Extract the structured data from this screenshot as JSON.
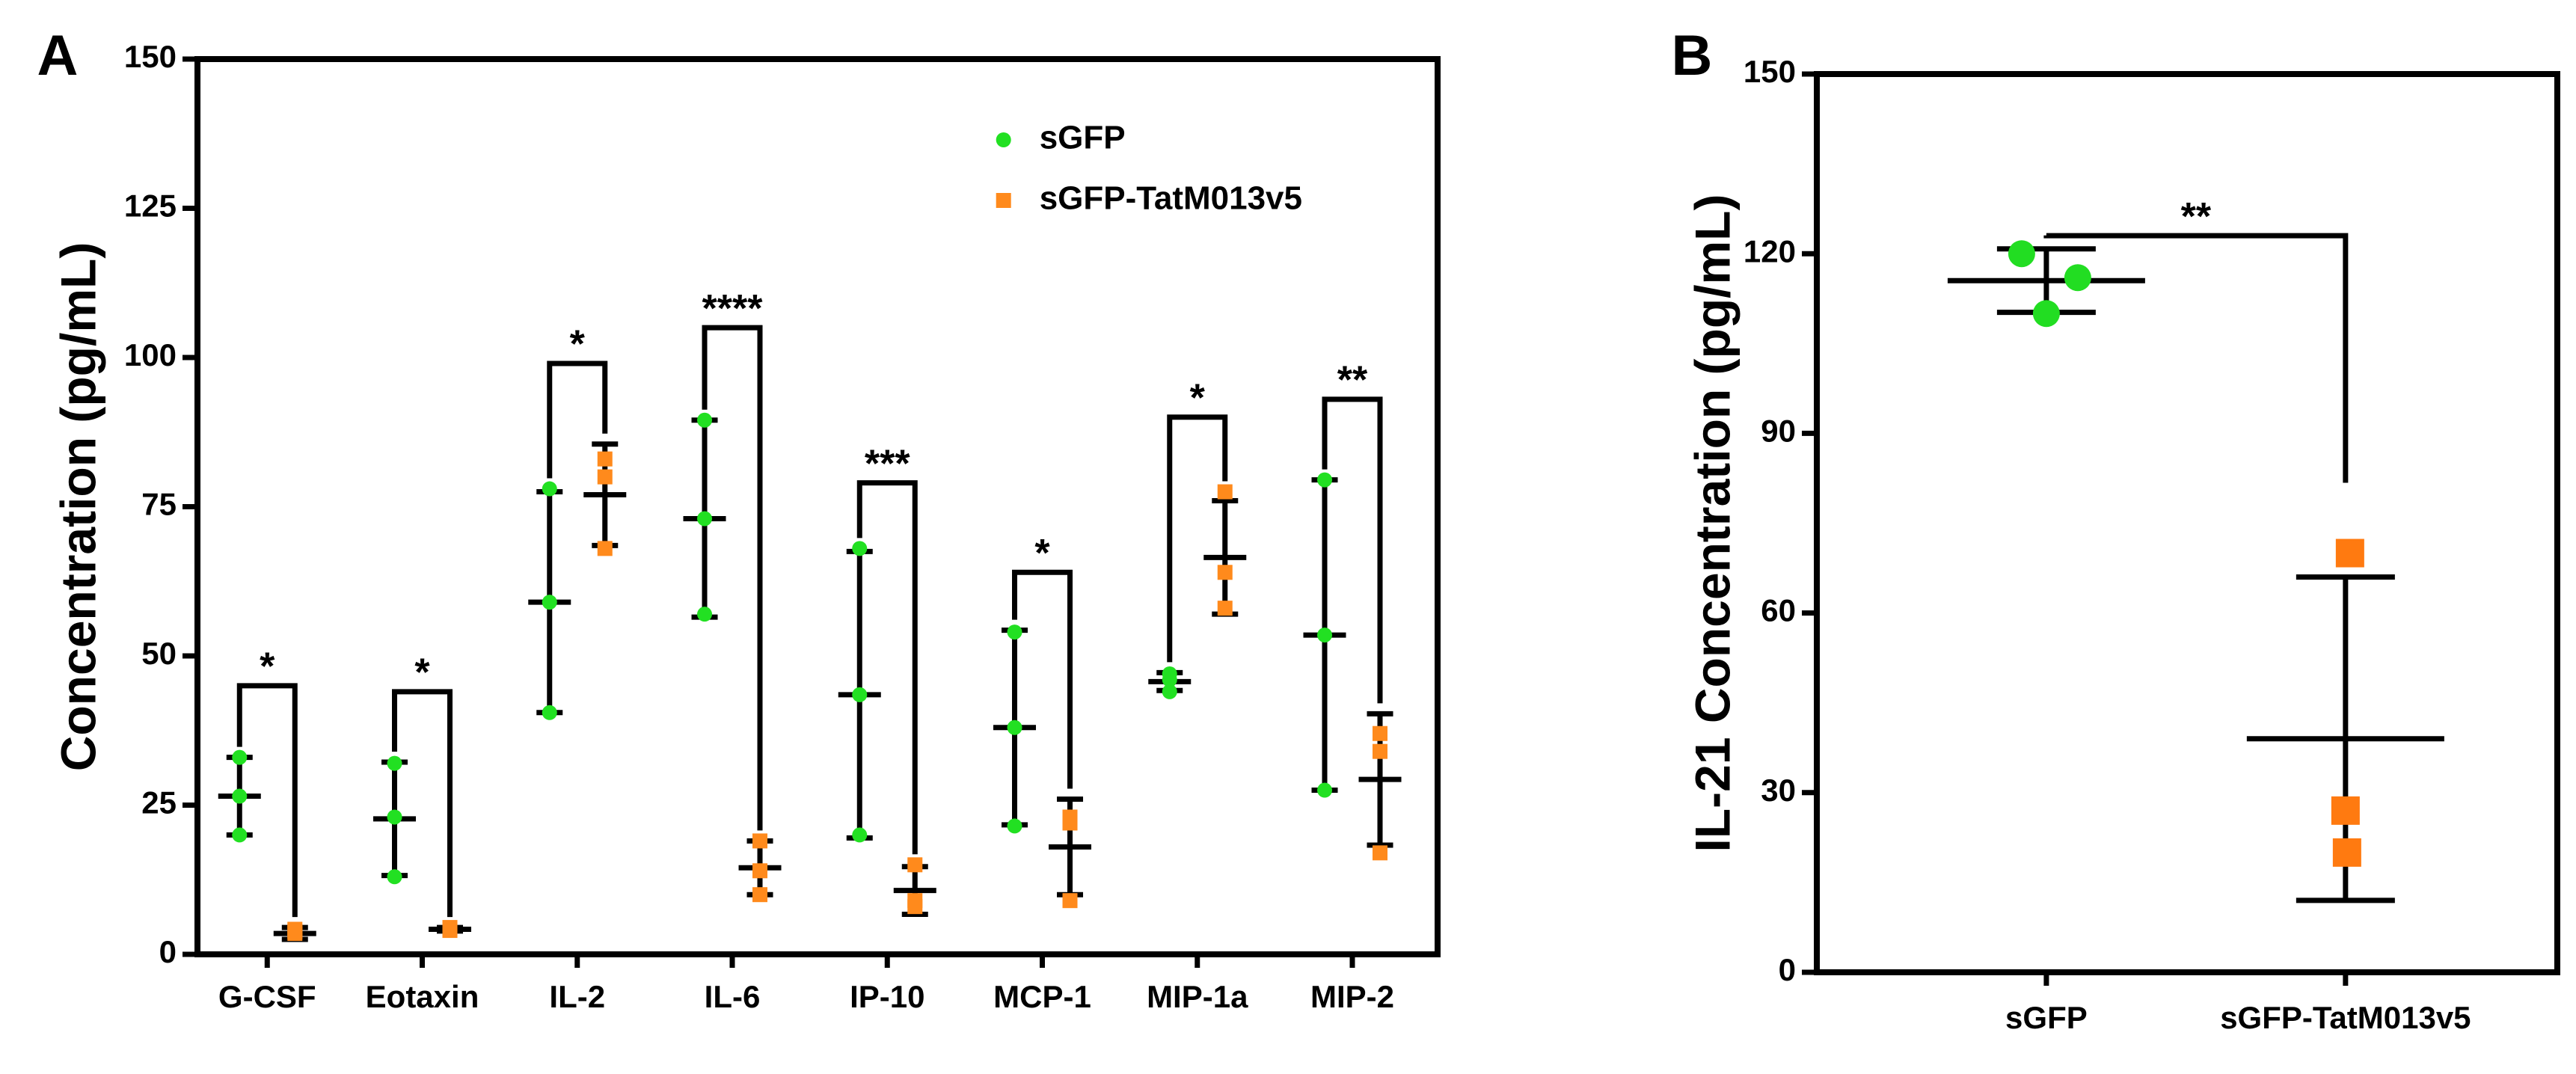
{
  "chart_data": [
    {
      "type": "dot",
      "panel": "A",
      "y_label": "Concentration (pg/mL)",
      "categories": [
        "G-CSF",
        "Eotaxin",
        "IL-2",
        "IL-6",
        "IP-10",
        "MCP-1",
        "MIP-1a",
        "MIP-2"
      ],
      "ylim": [
        0,
        150
      ],
      "yticks": [
        0,
        25,
        50,
        75,
        100,
        125,
        150
      ],
      "legend": "top-right",
      "series": [
        {
          "name": "sGFP",
          "color": "#22e022",
          "marker": "circle",
          "points": [
            [
              33,
              26.5,
              20
            ],
            [
              32,
              23,
              13
            ],
            [
              78,
              59,
              40.5
            ],
            [
              89.5,
              73,
              57
            ],
            [
              68,
              43.5,
              20
            ],
            [
              54,
              38,
              21.5
            ],
            [
              47,
              46,
              44
            ],
            [
              79.5,
              53.5,
              27.5
            ]
          ],
          "mean": [
            26.5,
            22.7,
            59,
            73,
            43.5,
            38,
            45.7,
            53.5
          ],
          "error": [
            6.5,
            9.5,
            18.5,
            16.5,
            24,
            16.3,
            1.5,
            26
          ]
        },
        {
          "name": "sGFP-TatM013v5",
          "color": "#ff8a1c",
          "marker": "square",
          "points": [
            [
              4.2,
              3.8,
              3.5
            ],
            [
              4.5,
              4.2,
              4
            ],
            [
              83,
              80,
              68
            ],
            [
              19,
              14,
              10
            ],
            [
              15,
              9,
              8
            ],
            [
              23,
              22,
              9
            ],
            [
              77.5,
              64,
              58
            ],
            [
              37,
              34,
              17
            ]
          ],
          "mean": [
            3.5,
            4.2,
            77,
            14.5,
            10.7,
            18,
            66.5,
            29.3
          ],
          "error": [
            1,
            0.3,
            8.5,
            4.5,
            4,
            8,
            9.5,
            11
          ]
        }
      ],
      "significance": [
        "*",
        "*",
        "*",
        "****",
        "***",
        "*",
        "*",
        "**"
      ],
      "significance_y": [
        45,
        44,
        99,
        105,
        79,
        64,
        90,
        93
      ]
    },
    {
      "type": "dot",
      "panel": "B",
      "y_label": "IL-21 Concentration (pg/mL)",
      "categories": [
        "sGFP",
        "sGFP-TatM013v5"
      ],
      "ylim": [
        0,
        150
      ],
      "yticks": [
        0,
        30,
        60,
        90,
        120,
        150
      ],
      "groups": [
        {
          "color": "#22dd22",
          "marker": "circle",
          "points": [
            120,
            116,
            110
          ],
          "mean": 115.5,
          "error": 5.3
        },
        {
          "color": "#ff7a10",
          "marker": "square",
          "points": [
            70,
            27,
            20
          ],
          "mean": 39,
          "error": 27
        }
      ],
      "significance": "**",
      "significance_y": 123
    }
  ]
}
